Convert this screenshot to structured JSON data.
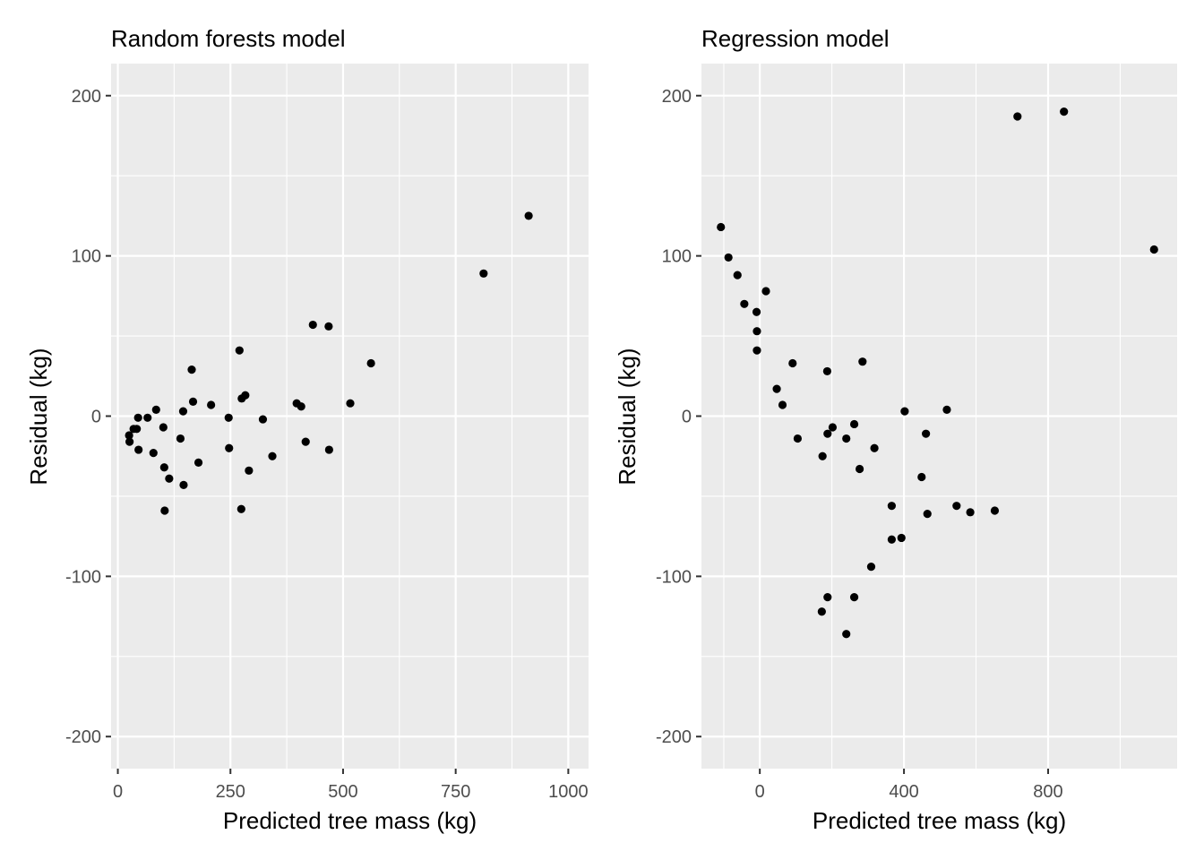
{
  "chart_data": [
    {
      "type": "scatter",
      "title": "Random forests model",
      "xlabel": "Predicted tree mass (kg)",
      "ylabel": "Residual (kg)",
      "xlim": [
        -15,
        1045
      ],
      "ylim": [
        -220,
        220
      ],
      "xticks": [
        0,
        250,
        500,
        750,
        1000
      ],
      "xtick_labels": [
        "0",
        "250",
        "500",
        "750",
        "1000"
      ],
      "xminor": [
        125,
        375,
        625,
        875
      ],
      "yticks": [
        -200,
        -100,
        0,
        100,
        200
      ],
      "ytick_labels": [
        "-200",
        "-100",
        "0",
        "100",
        "200"
      ],
      "yminor": [
        -150,
        -50,
        50,
        150
      ],
      "grid": true,
      "points": [
        {
          "x": 25,
          "y": -12
        },
        {
          "x": 26,
          "y": -16
        },
        {
          "x": 35,
          "y": -8
        },
        {
          "x": 42,
          "y": -8
        },
        {
          "x": 45,
          "y": -1
        },
        {
          "x": 46,
          "y": -21
        },
        {
          "x": 66,
          "y": -1
        },
        {
          "x": 79,
          "y": -23
        },
        {
          "x": 85,
          "y": 4
        },
        {
          "x": 101,
          "y": -7
        },
        {
          "x": 103,
          "y": -32
        },
        {
          "x": 104,
          "y": -59
        },
        {
          "x": 114,
          "y": -39
        },
        {
          "x": 139,
          "y": -14
        },
        {
          "x": 145,
          "y": 3
        },
        {
          "x": 146,
          "y": -43
        },
        {
          "x": 164,
          "y": 29
        },
        {
          "x": 167,
          "y": 9
        },
        {
          "x": 179,
          "y": -29
        },
        {
          "x": 207,
          "y": 7
        },
        {
          "x": 246,
          "y": -1
        },
        {
          "x": 247,
          "y": -20
        },
        {
          "x": 270,
          "y": 41
        },
        {
          "x": 274,
          "y": -58
        },
        {
          "x": 275,
          "y": 11
        },
        {
          "x": 283,
          "y": 13
        },
        {
          "x": 291,
          "y": -34
        },
        {
          "x": 322,
          "y": -2
        },
        {
          "x": 343,
          "y": -25
        },
        {
          "x": 397,
          "y": 8
        },
        {
          "x": 407,
          "y": 6
        },
        {
          "x": 417,
          "y": -16
        },
        {
          "x": 433,
          "y": 57
        },
        {
          "x": 468,
          "y": 56
        },
        {
          "x": 469,
          "y": -21
        },
        {
          "x": 516,
          "y": 8
        },
        {
          "x": 562,
          "y": 33
        },
        {
          "x": 812,
          "y": 89
        },
        {
          "x": 912,
          "y": 125
        }
      ]
    },
    {
      "type": "scatter",
      "title": "Regression model",
      "xlabel": "Predicted tree mass (kg)",
      "ylabel": "Residual (kg)",
      "xlim": [
        -162,
        1158
      ],
      "ylim": [
        -220,
        220
      ],
      "xticks": [
        0,
        400,
        800
      ],
      "xtick_labels": [
        "0",
        "400",
        "800"
      ],
      "xminor": [
        -100,
        200,
        600,
        1000
      ],
      "yticks": [
        -200,
        -100,
        0,
        100,
        200
      ],
      "ytick_labels": [
        "-200",
        "-100",
        "0",
        "100",
        "200"
      ],
      "yminor": [
        -150,
        -50,
        50,
        150
      ],
      "grid": true,
      "points": [
        {
          "x": -108,
          "y": 118
        },
        {
          "x": -87,
          "y": 99
        },
        {
          "x": -62,
          "y": 88
        },
        {
          "x": -43,
          "y": 70
        },
        {
          "x": -9,
          "y": 65
        },
        {
          "x": -8,
          "y": 53
        },
        {
          "x": -8,
          "y": 41
        },
        {
          "x": 17,
          "y": 78
        },
        {
          "x": 47,
          "y": 17
        },
        {
          "x": 63,
          "y": 7
        },
        {
          "x": 91,
          "y": 33
        },
        {
          "x": 105,
          "y": -14
        },
        {
          "x": 174,
          "y": -25
        },
        {
          "x": 187,
          "y": 28
        },
        {
          "x": 188,
          "y": -11
        },
        {
          "x": 188,
          "y": -113
        },
        {
          "x": 172,
          "y": -122
        },
        {
          "x": 202,
          "y": -7
        },
        {
          "x": 240,
          "y": -14
        },
        {
          "x": 240,
          "y": -136
        },
        {
          "x": 262,
          "y": -5
        },
        {
          "x": 262,
          "y": -113
        },
        {
          "x": 277,
          "y": -33
        },
        {
          "x": 285,
          "y": 34
        },
        {
          "x": 309,
          "y": -94
        },
        {
          "x": 318,
          "y": -20
        },
        {
          "x": 366,
          "y": -56
        },
        {
          "x": 366,
          "y": -77
        },
        {
          "x": 393,
          "y": -76
        },
        {
          "x": 402,
          "y": 3
        },
        {
          "x": 449,
          "y": -38
        },
        {
          "x": 461,
          "y": -11
        },
        {
          "x": 465,
          "y": -61
        },
        {
          "x": 519,
          "y": 4
        },
        {
          "x": 546,
          "y": -56
        },
        {
          "x": 584,
          "y": -60
        },
        {
          "x": 652,
          "y": -59
        },
        {
          "x": 715,
          "y": 187
        },
        {
          "x": 844,
          "y": 190
        },
        {
          "x": 1094,
          "y": 104
        }
      ]
    }
  ]
}
